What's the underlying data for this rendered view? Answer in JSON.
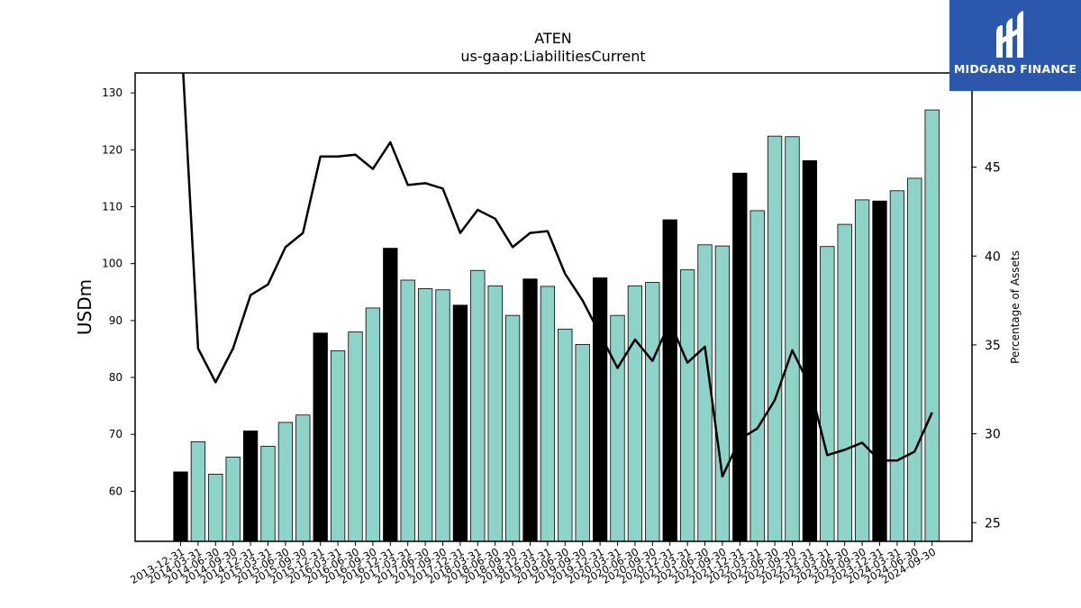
{
  "brand": {
    "name": "MIDGARD FINANCE",
    "bg_color": "#2b58ad"
  },
  "chart_data": {
    "type": "bar",
    "title": "ATEN",
    "subtitle": "us-gaap:LiabilitiesCurrent",
    "ylabel": "USDm",
    "y2label": "Percentage of Assets",
    "ylim": [
      51.2,
      133.5
    ],
    "y2lim": [
      23.95,
      50.3
    ],
    "yticks": [
      60,
      70,
      80,
      90,
      100,
      110,
      120,
      130
    ],
    "y2ticks": [
      25,
      30,
      35,
      40,
      45
    ],
    "bar_color": "#8dd3c7",
    "highlight_color": "#000000",
    "line_color": "#000000",
    "categories": [
      "2013-12-31",
      "2014-03-31",
      "2014-06-30",
      "2014-09-30",
      "2014-12-31",
      "2015-03-31",
      "2015-06-30",
      "2015-09-30",
      "2015-12-31",
      "2016-03-31",
      "2016-06-30",
      "2016-09-30",
      "2016-12-31",
      "2017-03-31",
      "2017-06-30",
      "2017-09-30",
      "2017-12-31",
      "2018-03-31",
      "2018-06-30",
      "2018-09-30",
      "2018-12-31",
      "2019-03-31",
      "2019-06-30",
      "2019-09-30",
      "2019-12-31",
      "2020-03-31",
      "2020-06-30",
      "2020-09-30",
      "2020-12-31",
      "2021-03-31",
      "2021-06-30",
      "2021-09-30",
      "2021-12-31",
      "2022-03-31",
      "2022-06-30",
      "2022-09-30",
      "2022-12-31",
      "2023-03-31",
      "2023-06-30",
      "2023-09-30",
      "2023-12-31",
      "2024-03-31",
      "2024-06-30",
      "2024-09-30"
    ],
    "series": [
      {
        "type": "bar",
        "values": [
          63.4,
          68.7,
          63.0,
          66.0,
          70.6,
          67.9,
          72.1,
          73.4,
          87.8,
          84.7,
          88.0,
          92.2,
          102.7,
          97.1,
          95.6,
          95.4,
          92.7,
          98.8,
          96.1,
          90.9,
          97.3,
          96.0,
          88.5,
          85.8,
          97.5,
          90.9,
          96.1,
          96.7,
          107.7,
          98.9,
          103.3,
          103.1,
          115.9,
          109.3,
          122.4,
          122.3,
          118.1,
          103.0,
          106.9,
          111.2,
          111.0,
          112.8,
          115.0,
          127.0
        ],
        "highlight": [
          true,
          false,
          false,
          false,
          true,
          false,
          false,
          false,
          true,
          false,
          false,
          false,
          true,
          false,
          false,
          false,
          true,
          false,
          false,
          false,
          true,
          false,
          false,
          false,
          true,
          false,
          false,
          false,
          true,
          false,
          false,
          false,
          true,
          false,
          false,
          false,
          true,
          false,
          false,
          false,
          true,
          false,
          false,
          false
        ]
      },
      {
        "type": "line",
        "axis": "right",
        "values": [
          53.0,
          34.8,
          32.9,
          34.8,
          37.8,
          38.4,
          40.5,
          41.3,
          45.6,
          45.6,
          45.7,
          44.9,
          46.4,
          44.0,
          44.1,
          43.8,
          41.3,
          42.6,
          42.1,
          40.5,
          41.3,
          41.4,
          39.0,
          37.5,
          35.6,
          33.7,
          35.3,
          34.1,
          36.3,
          34.0,
          34.9,
          27.6,
          29.7,
          30.3,
          31.9,
          34.7,
          32.7,
          28.8,
          29.1,
          29.5,
          28.5,
          28.5,
          29.0,
          31.2
        ]
      }
    ]
  }
}
